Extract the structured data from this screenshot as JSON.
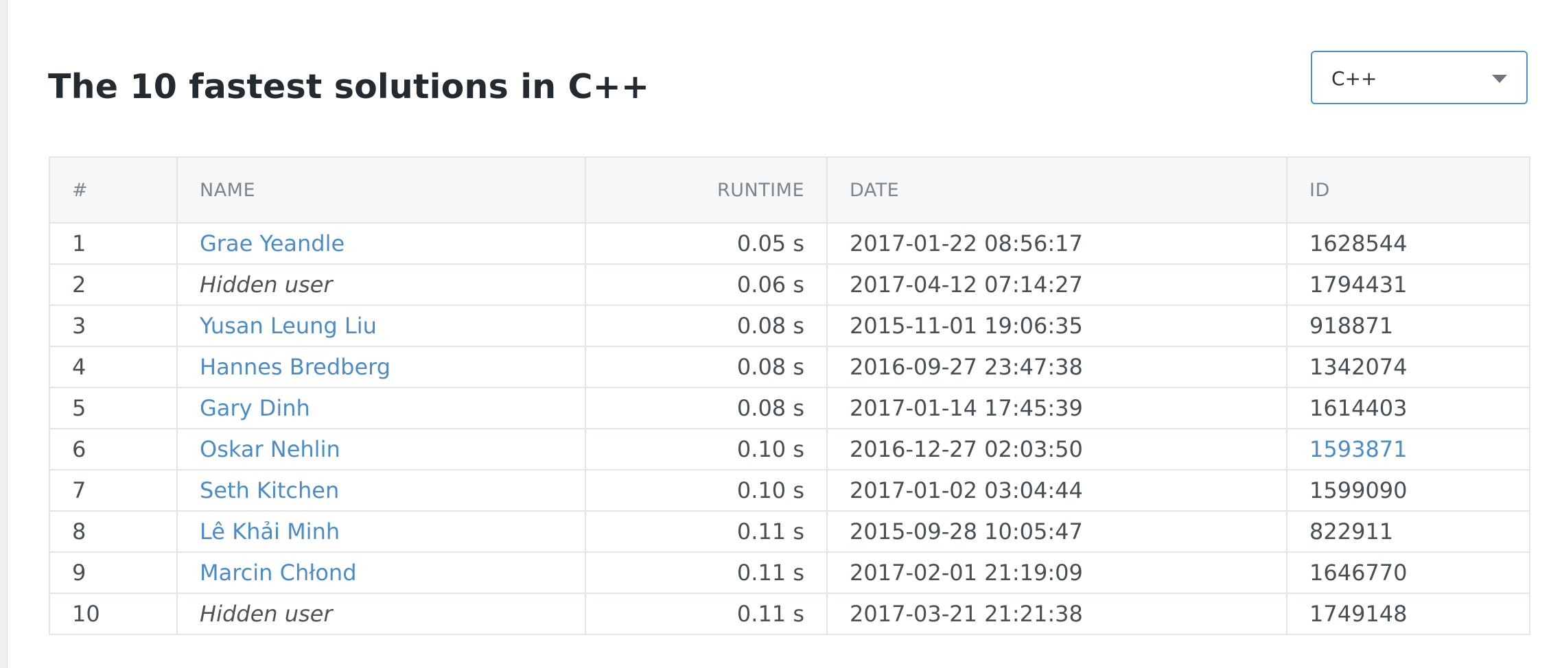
{
  "page": {
    "title": "The 10 fastest solutions in C++"
  },
  "language_select": {
    "selected": "C++"
  },
  "table": {
    "headers": {
      "rank": "#",
      "name": "NAME",
      "runtime": "RUNTIME",
      "date": "DATE",
      "id": "ID"
    },
    "rows": [
      {
        "rank": "1",
        "name": "Grae Yeandle",
        "name_is_link": true,
        "runtime": "0.05 s",
        "date": "2017-01-22 08:56:17",
        "id": "1628544",
        "id_is_link": false
      },
      {
        "rank": "2",
        "name": "Hidden user",
        "name_is_link": false,
        "runtime": "0.06 s",
        "date": "2017-04-12 07:14:27",
        "id": "1794431",
        "id_is_link": false
      },
      {
        "rank": "3",
        "name": "Yusan Leung Liu",
        "name_is_link": true,
        "runtime": "0.08 s",
        "date": "2015-11-01 19:06:35",
        "id": "918871",
        "id_is_link": false
      },
      {
        "rank": "4",
        "name": "Hannes Bredberg",
        "name_is_link": true,
        "runtime": "0.08 s",
        "date": "2016-09-27 23:47:38",
        "id": "1342074",
        "id_is_link": false
      },
      {
        "rank": "5",
        "name": "Gary Dinh",
        "name_is_link": true,
        "runtime": "0.08 s",
        "date": "2017-01-14 17:45:39",
        "id": "1614403",
        "id_is_link": false
      },
      {
        "rank": "6",
        "name": "Oskar Nehlin",
        "name_is_link": true,
        "runtime": "0.10 s",
        "date": "2016-12-27 02:03:50",
        "id": "1593871",
        "id_is_link": true
      },
      {
        "rank": "7",
        "name": "Seth Kitchen",
        "name_is_link": true,
        "runtime": "0.10 s",
        "date": "2017-01-02 03:04:44",
        "id": "1599090",
        "id_is_link": false
      },
      {
        "rank": "8",
        "name": "Lê Khải Minh",
        "name_is_link": true,
        "runtime": "0.11 s",
        "date": "2015-09-28 10:05:47",
        "id": "822911",
        "id_is_link": false
      },
      {
        "rank": "9",
        "name": "Marcin Chłond",
        "name_is_link": true,
        "runtime": "0.11 s",
        "date": "2017-02-01 21:19:09",
        "id": "1646770",
        "id_is_link": false
      },
      {
        "rank": "10",
        "name": "Hidden user",
        "name_is_link": false,
        "runtime": "0.11 s",
        "date": "2017-03-21 21:21:38",
        "id": "1749148",
        "id_is_link": false
      }
    ]
  },
  "colors": {
    "link": "#4a8bc8",
    "select_border": "#4a8fd1",
    "header_bg": "#f6f7f8",
    "border": "#e3e6e8"
  },
  "icons": {
    "select_caret": "chevron-down-icon"
  }
}
